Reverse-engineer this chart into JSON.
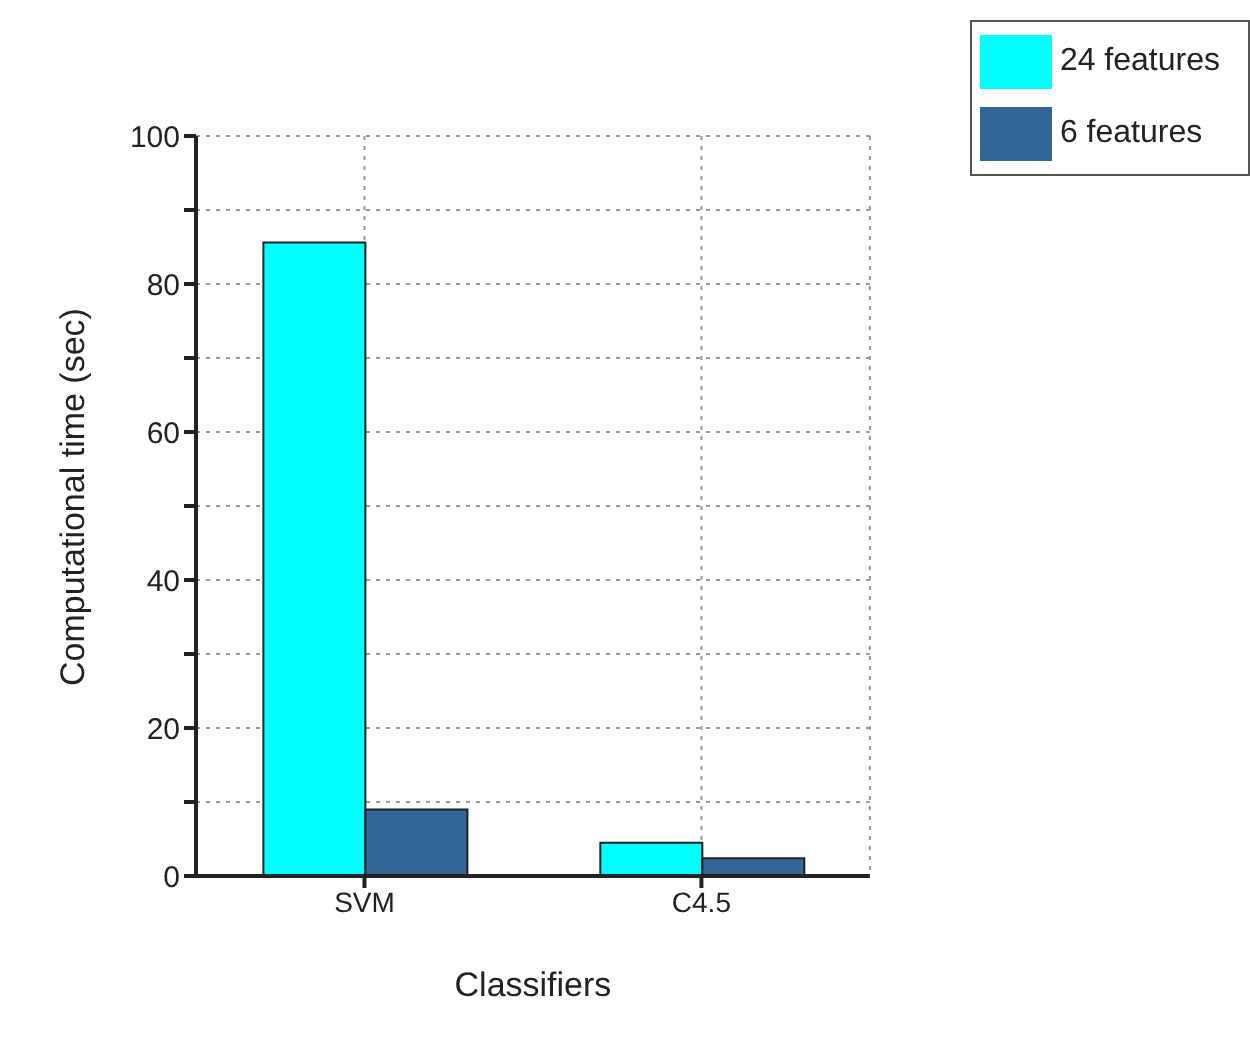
{
  "chart_data": {
    "type": "bar",
    "xlabel": "Classifiers",
    "ylabel": "Computational time (sec)",
    "categories": [
      "SVM",
      "C4.5"
    ],
    "series": [
      {
        "name": "24 features",
        "color": "#00ffff",
        "values": [
          85.6,
          4.5
        ]
      },
      {
        "name": "6 features",
        "color": "#336699",
        "values": [
          9.0,
          2.4
        ]
      }
    ],
    "ylim": [
      0,
      100
    ],
    "yticks": [
      0,
      {
        "value": 10,
        "label": null
      },
      20,
      {
        "value": 30,
        "label": null
      },
      40,
      {
        "value": 50,
        "label": null
      },
      60,
      {
        "value": 70,
        "label": null
      },
      80,
      {
        "value": 90,
        "label": null
      },
      100
    ],
    "grid": true,
    "legend": "top right"
  }
}
